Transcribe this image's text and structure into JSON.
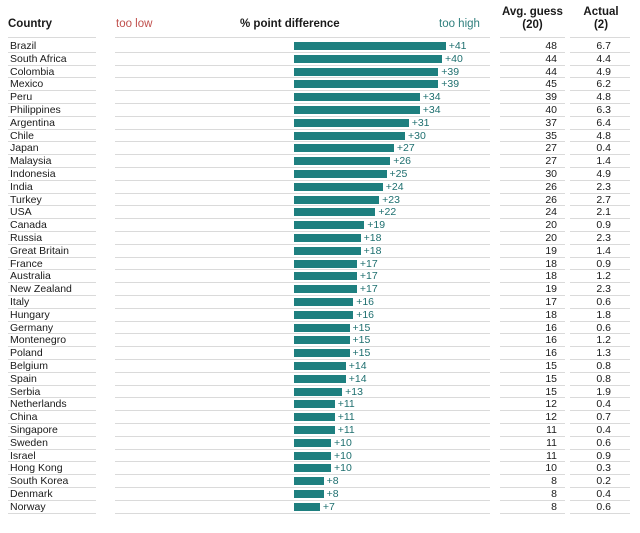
{
  "headers": {
    "country": "Country",
    "too_low": "too low",
    "difference": "% point difference",
    "too_high": "too high",
    "avg_guess": "Avg. guess",
    "avg_guess_note": "(20)",
    "actual": "Actual",
    "actual_note": "(2)"
  },
  "chart_data": {
    "type": "bar",
    "orientation": "horizontal",
    "colors": {
      "bar": "#1e7f7f",
      "too_low": "#c0504d",
      "too_high": "#2f7f7d"
    },
    "xlim": [
      -50,
      45
    ],
    "rows": [
      {
        "country": "Brazil",
        "diff": "+41",
        "value": 41,
        "avg": "48",
        "actual": "6.7"
      },
      {
        "country": "South Africa",
        "diff": "+40",
        "value": 40,
        "avg": "44",
        "actual": "4.4"
      },
      {
        "country": "Colombia",
        "diff": "+39",
        "value": 39,
        "avg": "44",
        "actual": "4.9"
      },
      {
        "country": "Mexico",
        "diff": "+39",
        "value": 39,
        "avg": "45",
        "actual": "6.2"
      },
      {
        "country": "Peru",
        "diff": "+34",
        "value": 34,
        "avg": "39",
        "actual": "4.8"
      },
      {
        "country": "Philippines",
        "diff": "+34",
        "value": 34,
        "avg": "40",
        "actual": "6.3"
      },
      {
        "country": "Argentina",
        "diff": "+31",
        "value": 31,
        "avg": "37",
        "actual": "6.4"
      },
      {
        "country": "Chile",
        "diff": "+30",
        "value": 30,
        "avg": "35",
        "actual": "4.8"
      },
      {
        "country": "Japan",
        "diff": "+27",
        "value": 27,
        "avg": "27",
        "actual": "0.4"
      },
      {
        "country": "Malaysia",
        "diff": "+26",
        "value": 26,
        "avg": "27",
        "actual": "1.4"
      },
      {
        "country": "Indonesia",
        "diff": "+25",
        "value": 25,
        "avg": "30",
        "actual": "4.9"
      },
      {
        "country": "India",
        "diff": "+24",
        "value": 24,
        "avg": "26",
        "actual": "2.3"
      },
      {
        "country": "Turkey",
        "diff": "+23",
        "value": 23,
        "avg": "26",
        "actual": "2.7"
      },
      {
        "country": "USA",
        "diff": "+22",
        "value": 22,
        "avg": "24",
        "actual": "2.1"
      },
      {
        "country": "Canada",
        "diff": "+19",
        "value": 19,
        "avg": "20",
        "actual": "0.9"
      },
      {
        "country": "Russia",
        "diff": "+18",
        "value": 18,
        "avg": "20",
        "actual": "2.3"
      },
      {
        "country": "Great Britain",
        "diff": "+18",
        "value": 18,
        "avg": "19",
        "actual": "1.4"
      },
      {
        "country": "France",
        "diff": "+17",
        "value": 17,
        "avg": "18",
        "actual": "0.9"
      },
      {
        "country": "Australia",
        "diff": "+17",
        "value": 17,
        "avg": "18",
        "actual": "1.2"
      },
      {
        "country": "New Zealand",
        "diff": "+17",
        "value": 17,
        "avg": "19",
        "actual": "2.3"
      },
      {
        "country": "Italy",
        "diff": "+16",
        "value": 16,
        "avg": "17",
        "actual": "0.6"
      },
      {
        "country": "Hungary",
        "diff": "+16",
        "value": 16,
        "avg": "18",
        "actual": "1.8"
      },
      {
        "country": "Germany",
        "diff": "+15",
        "value": 15,
        "avg": "16",
        "actual": "0.6"
      },
      {
        "country": "Montenegro",
        "diff": "+15",
        "value": 15,
        "avg": "16",
        "actual": "1.2"
      },
      {
        "country": "Poland",
        "diff": "+15",
        "value": 15,
        "avg": "16",
        "actual": "1.3"
      },
      {
        "country": "Belgium",
        "diff": "+14",
        "value": 14,
        "avg": "15",
        "actual": "0.8"
      },
      {
        "country": "Spain",
        "diff": "+14",
        "value": 14,
        "avg": "15",
        "actual": "0.8"
      },
      {
        "country": "Serbia",
        "diff": "+13",
        "value": 13,
        "avg": "15",
        "actual": "1.9"
      },
      {
        "country": "Netherlands",
        "diff": "+11",
        "value": 11,
        "avg": "12",
        "actual": "0.4"
      },
      {
        "country": "China",
        "diff": "+11",
        "value": 11,
        "avg": "12",
        "actual": "0.7"
      },
      {
        "country": "Singapore",
        "diff": "+11",
        "value": 11,
        "avg": "11",
        "actual": "0.4"
      },
      {
        "country": "Sweden",
        "diff": "+10",
        "value": 10,
        "avg": "11",
        "actual": "0.6"
      },
      {
        "country": "Israel",
        "diff": "+10",
        "value": 10,
        "avg": "11",
        "actual": "0.9"
      },
      {
        "country": "Hong Kong",
        "diff": "+10",
        "value": 10,
        "avg": "10",
        "actual": "0.3"
      },
      {
        "country": "South Korea",
        "diff": "+8",
        "value": 8,
        "avg": "8",
        "actual": "0.2"
      },
      {
        "country": "Denmark",
        "diff": "+8",
        "value": 8,
        "avg": "8",
        "actual": "0.4"
      },
      {
        "country": "Norway",
        "diff": "+7",
        "value": 7,
        "avg": "8",
        "actual": "0.6"
      }
    ]
  }
}
